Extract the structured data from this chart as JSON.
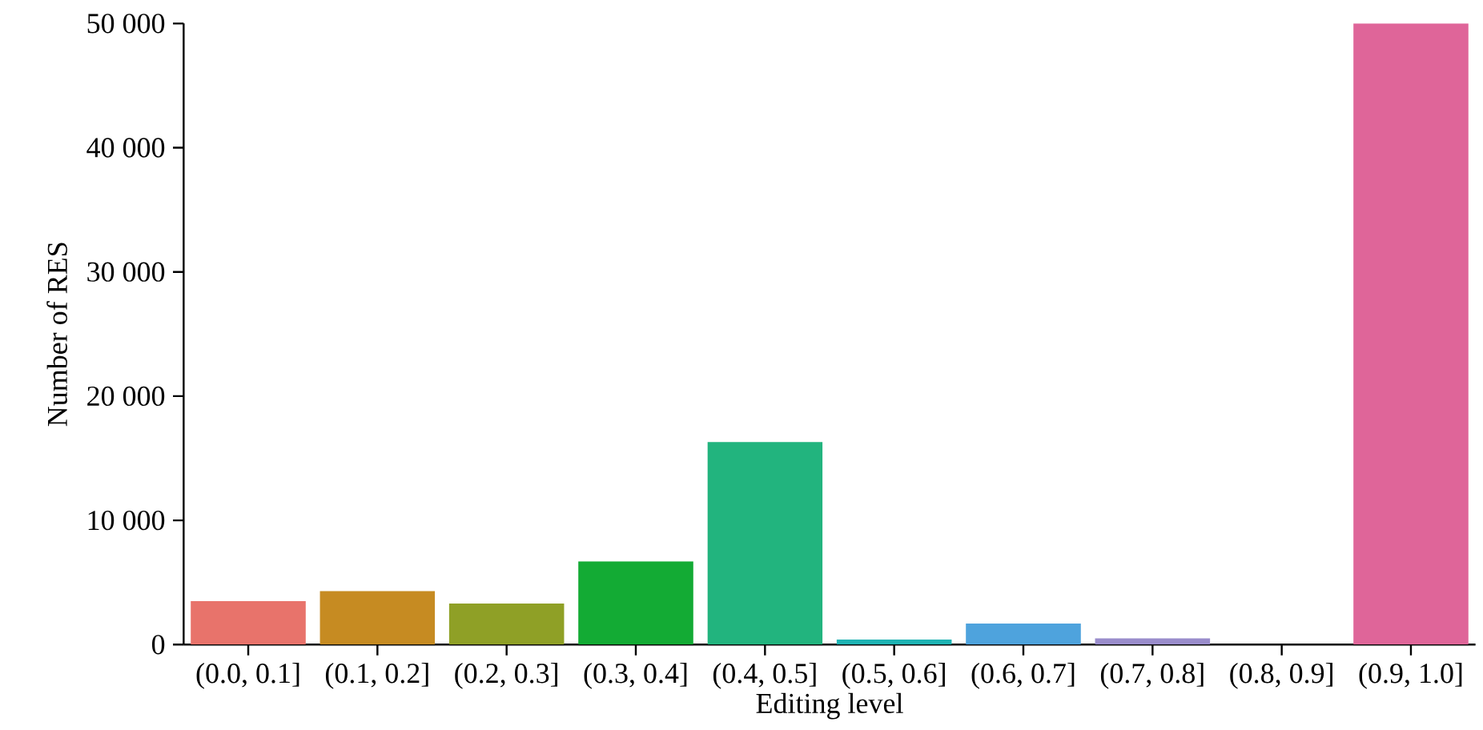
{
  "chart_data": {
    "type": "bar",
    "xlabel": "Editing level",
    "ylabel": "Number of RES",
    "categories": [
      "(0.0, 0.1]",
      "(0.1, 0.2]",
      "(0.2, 0.3]",
      "(0.3, 0.4]",
      "(0.4, 0.5]",
      "(0.5, 0.6]",
      "(0.6, 0.7]",
      "(0.7, 0.8]",
      "(0.8, 0.9]",
      "(0.9, 1.0]"
    ],
    "values": [
      3500,
      4300,
      3300,
      6700,
      16300,
      400,
      1700,
      500,
      0,
      50000
    ],
    "colors": [
      "#e8736b",
      "#c68b22",
      "#8fa026",
      "#13ab34",
      "#22b47e",
      "#1eb3b3",
      "#4ea3dd",
      "#9a8dcc",
      "#c875dd",
      "#df6599"
    ],
    "ylim": [
      0,
      50000
    ],
    "yticks": [
      {
        "value": 0,
        "label": "0"
      },
      {
        "value": 10000,
        "label": "10 000"
      },
      {
        "value": 20000,
        "label": "20 000"
      },
      {
        "value": 30000,
        "label": "30 000"
      },
      {
        "value": 40000,
        "label": "40 000"
      },
      {
        "value": 50000,
        "label": "50 000"
      }
    ],
    "grid": false
  }
}
